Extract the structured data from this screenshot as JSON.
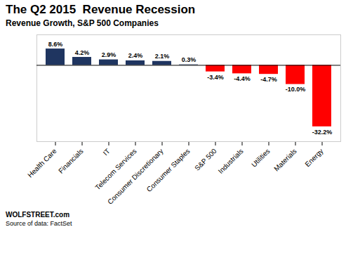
{
  "chart_data": {
    "type": "bar",
    "title": "The Q2 2015  Revenue Recession",
    "subtitle": "Revenue Growth, S&P 500 Companies",
    "annotations": [
      "WOLFSTREET.com",
      "Source of data: FactSet"
    ],
    "categories": [
      "Health Care",
      "Financials",
      "IT",
      "Telecom Services",
      "Consumer Discretionary",
      "Consumer Staples",
      "S&P 500",
      "Industrials",
      "Utilities",
      "Materials",
      "Energy"
    ],
    "values": [
      8.6,
      4.2,
      2.9,
      2.4,
      2.1,
      0.3,
      -3.4,
      -4.4,
      -4.7,
      -10.0,
      -32.2
    ],
    "value_labels": [
      "8.6%",
      "4.2%",
      "2.9%",
      "2.4%",
      "2.1%",
      "0.3%",
      "-3.4%",
      "-4.4%",
      "-4.7%",
      "-10.0%",
      "-32.2%"
    ],
    "colors": [
      "#1f3560",
      "#1f3560",
      "#1f3560",
      "#1f3560",
      "#1f3560",
      "#1f3560",
      "#ff0000",
      "#ff0000",
      "#ff0000",
      "#ff0000",
      "#ff0000"
    ],
    "ylim": [
      -40,
      16
    ],
    "data_labels": true,
    "tick_labels": "x"
  }
}
